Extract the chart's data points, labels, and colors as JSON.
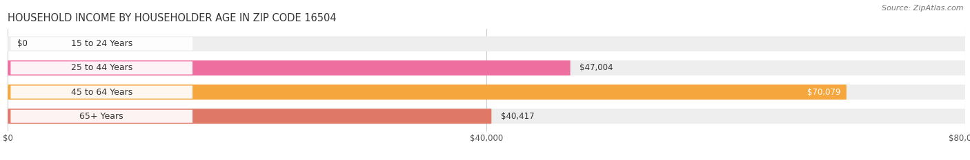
{
  "title": "HOUSEHOLD INCOME BY HOUSEHOLDER AGE IN ZIP CODE 16504",
  "source": "Source: ZipAtlas.com",
  "categories": [
    "15 to 24 Years",
    "25 to 44 Years",
    "45 to 64 Years",
    "65+ Years"
  ],
  "values": [
    0,
    47004,
    70079,
    40417
  ],
  "bar_colors": [
    "#aaaadd",
    "#ee6ea0",
    "#f5a63c",
    "#e07868"
  ],
  "bar_bg_color": "#eeeeee",
  "label_bg_color": "#ffffff",
  "background_color": "#ffffff",
  "xlim": [
    0,
    80000
  ],
  "xticks": [
    0,
    40000,
    80000
  ],
  "xtick_labels": [
    "$0",
    "$40,000",
    "$80,000"
  ],
  "title_fontsize": 10.5,
  "source_fontsize": 8,
  "label_fontsize": 9,
  "value_fontsize": 8.5,
  "tick_fontsize": 8.5,
  "value_label_inside": [
    false,
    false,
    true,
    false
  ],
  "value_label_colors_inside": [
    "black",
    "black",
    "white",
    "black"
  ]
}
